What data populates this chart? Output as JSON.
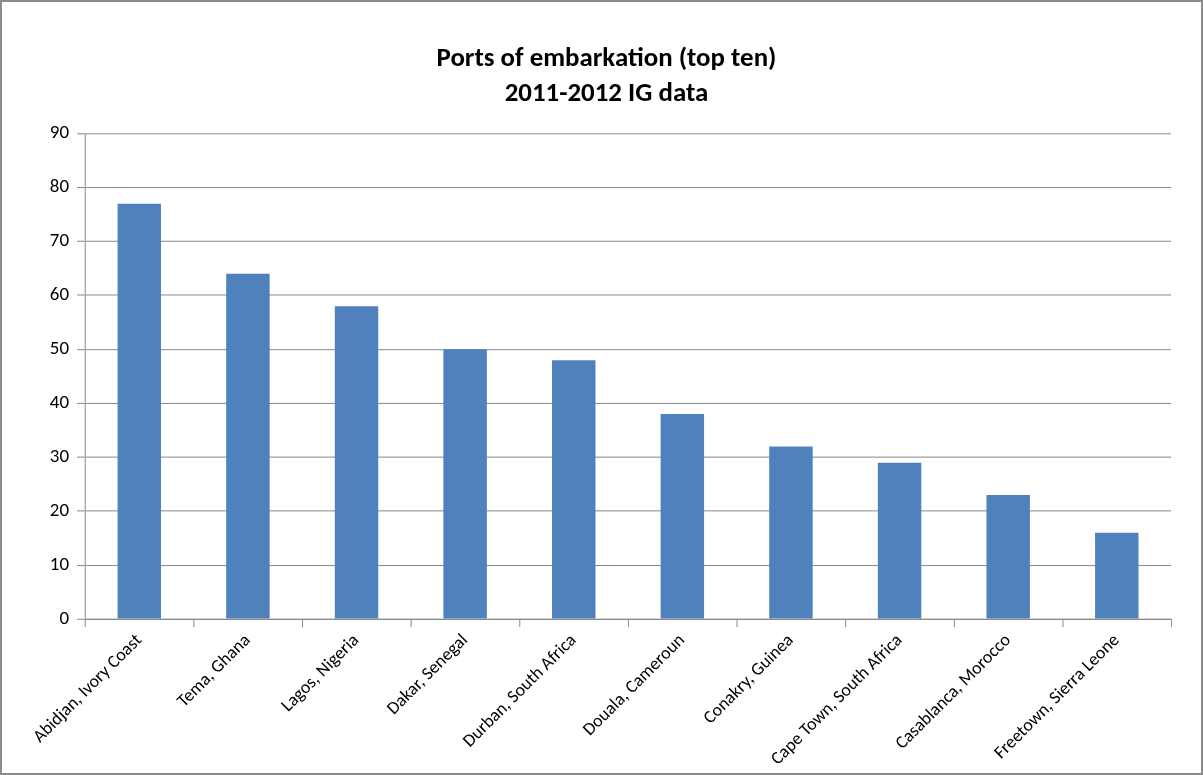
{
  "chart_data": {
    "type": "bar",
    "title": "Ports of embarkation (top ten)\n2011-2012 IG data",
    "categories": [
      "Abidjan, Ivory Coast",
      "Tema, Ghana",
      "Lagos, Nigeria",
      "Dakar, Senegal",
      "Durban, South Africa",
      "Douala, Cameroun",
      "Conakry, Guinea",
      "Cape Town, South Africa",
      "Casablanca, Morocco",
      "Freetown, Sierra Leone"
    ],
    "values": [
      77,
      64,
      58,
      50,
      48,
      38,
      32,
      29,
      23,
      16
    ],
    "color": "#4f81bd",
    "ylim": [
      0,
      90
    ],
    "yticks": [
      0,
      10,
      20,
      30,
      40,
      50,
      60,
      70,
      80,
      90
    ],
    "grid": "y",
    "legend": false
  }
}
